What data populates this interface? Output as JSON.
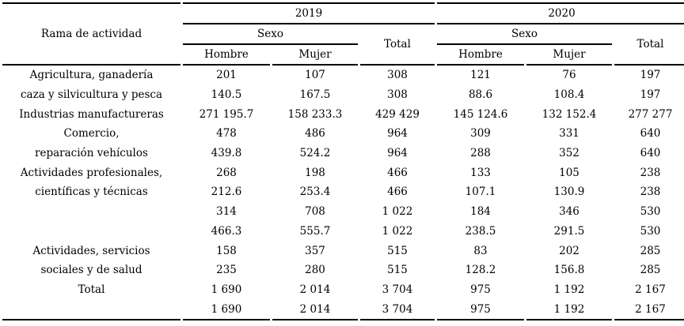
{
  "chart_data": {
    "type": "table",
    "row_header": "Rama de actividad",
    "groups": [
      {
        "year": "2019",
        "sexo_label": "Sexo",
        "columns": [
          "Hombre",
          "Mujer"
        ],
        "total_label": "Total"
      },
      {
        "year": "2020",
        "sexo_label": "Sexo",
        "columns": [
          "Hombre",
          "Mujer"
        ],
        "total_label": "Total"
      }
    ],
    "rows": [
      {
        "label": "Agricultura, ganadería",
        "values": [
          "201",
          "107",
          "308",
          "121",
          "76",
          "197"
        ]
      },
      {
        "label": "caza y silvicultura y pesca",
        "values": [
          "140.5",
          "167.5",
          "308",
          "88.6",
          "108.4",
          "197"
        ]
      },
      {
        "label": "Industrias manufactureras",
        "values": [
          "271 195.7",
          "158 233.3",
          "429 429",
          "145 124.6",
          "132 152.4",
          "277 277"
        ]
      },
      {
        "label": "Comercio,",
        "values": [
          "478",
          "486",
          "964",
          "309",
          "331",
          "640"
        ]
      },
      {
        "label": "reparación vehículos",
        "values": [
          "439.8",
          "524.2",
          "964",
          "288",
          "352",
          "640"
        ]
      },
      {
        "label": "Actividades profesionales,",
        "values": [
          "268",
          "198",
          "466",
          "133",
          "105",
          "238"
        ]
      },
      {
        "label": "científicas y técnicas",
        "values": [
          "212.6",
          "253.4",
          "466",
          "107.1",
          "130.9",
          "238"
        ]
      },
      {
        "label": "",
        "values": [
          "314",
          "708",
          "1 022",
          "184",
          "346",
          "530"
        ]
      },
      {
        "label": "",
        "values": [
          "466.3",
          "555.7",
          "1 022",
          "238.5",
          "291.5",
          "530"
        ]
      },
      {
        "label": "Actividades, servicios",
        "values": [
          "158",
          "357",
          "515",
          "83",
          "202",
          "285"
        ]
      },
      {
        "label": "sociales y de salud",
        "values": [
          "235",
          "280",
          "515",
          "128.2",
          "156.8",
          "285"
        ]
      },
      {
        "label": "Total",
        "values": [
          "1 690",
          "2 014",
          "3 704",
          "975",
          "1 192",
          "2 167"
        ]
      },
      {
        "label": "",
        "values": [
          "1 690",
          "2 014",
          "3 704",
          "975",
          "1 192",
          "2 167"
        ]
      }
    ],
    "layout": {
      "rule_color": "#000000",
      "background_color": "#ffffff",
      "text_color": "#000000",
      "grid": "horizontal-rules-only"
    }
  }
}
